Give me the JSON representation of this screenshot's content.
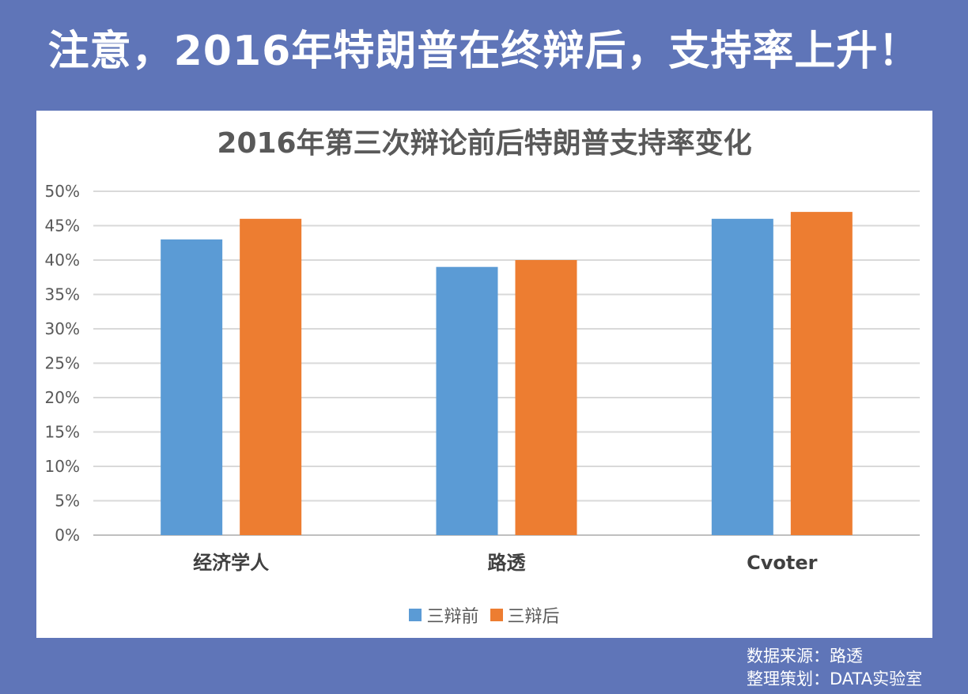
{
  "headline": "注意，2016年特朗普在终辩后，支持率上升！",
  "source": {
    "line1": "数据来源：路透",
    "line2": "整理策划：DATA实验室"
  },
  "colors": {
    "background": "#5f75b8",
    "series_before": "#5b9bd5",
    "series_after": "#ed7d31"
  },
  "chart_data": {
    "type": "bar",
    "title": "2016年第三次辩论前后特朗普支持率变化",
    "categories": [
      "经济学人",
      "路透",
      "Cvoter"
    ],
    "series": [
      {
        "name": "三辩前",
        "values": [
          43,
          39,
          46
        ],
        "color": "#5b9bd5"
      },
      {
        "name": "三辩后",
        "values": [
          46,
          40,
          47
        ],
        "color": "#ed7d31"
      }
    ],
    "ylim": [
      0,
      50
    ],
    "yticks": [
      "0%",
      "5%",
      "10%",
      "15%",
      "20%",
      "25%",
      "30%",
      "35%",
      "40%",
      "45%",
      "50%"
    ],
    "y_unit": "%",
    "grid": true,
    "legend_position": "bottom"
  }
}
